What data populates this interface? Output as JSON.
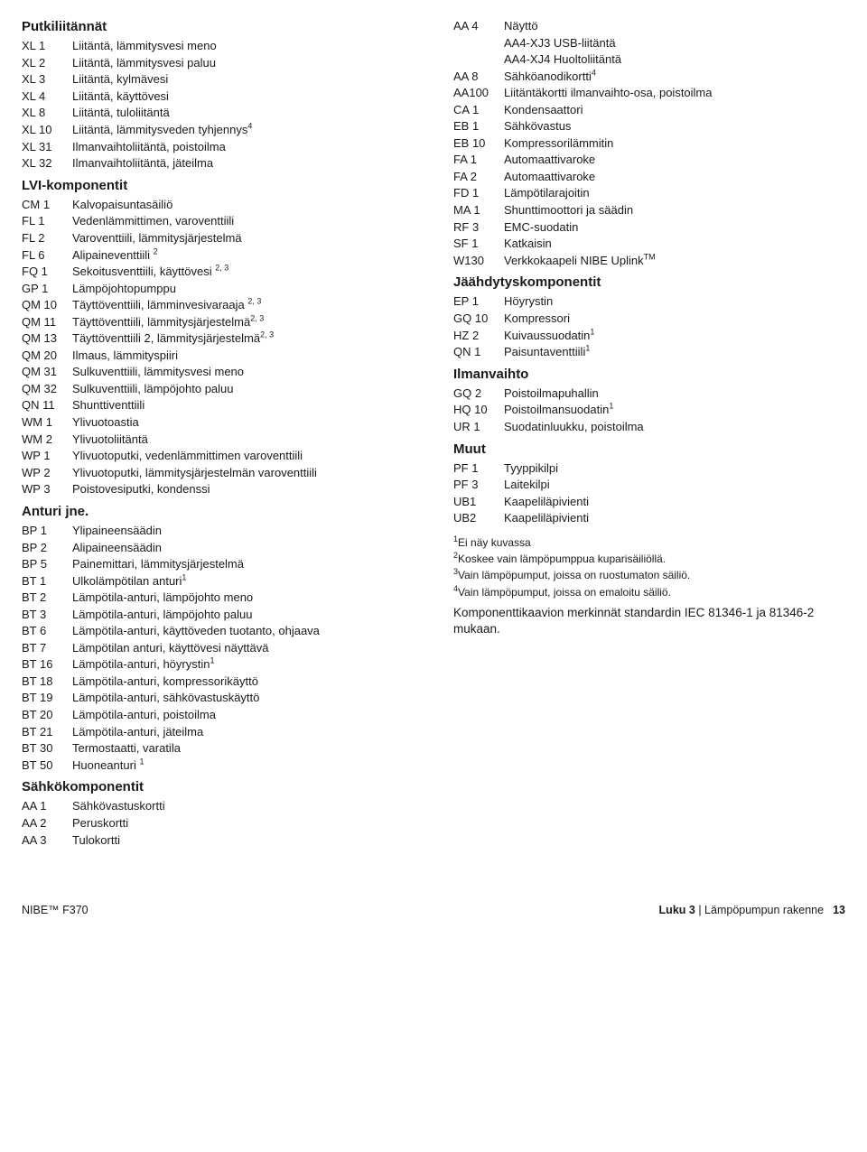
{
  "left": {
    "sections": [
      {
        "title": "Putkiliitännät",
        "rows": [
          {
            "code": "XL 1",
            "desc": "Liitäntä, lämmitysvesi meno"
          },
          {
            "code": "XL 2",
            "desc": "Liitäntä, lämmitysvesi paluu"
          },
          {
            "code": "XL 3",
            "desc": "Liitäntä, kylmävesi"
          },
          {
            "code": "XL 4",
            "desc": "Liitäntä, käyttövesi"
          },
          {
            "code": "XL 8",
            "desc": "Liitäntä, tuloliitäntä"
          },
          {
            "code": "XL 10",
            "desc": "Liitäntä, lämmitysveden tyhjennys",
            "sup": "4"
          },
          {
            "code": "XL 31",
            "desc": "Ilmanvaihtoliitäntä, poistoilma"
          },
          {
            "code": "XL 32",
            "desc": "Ilmanvaihtoliitäntä, jäteilma"
          }
        ]
      },
      {
        "title": "LVI-komponentit",
        "rows": [
          {
            "code": "CM 1",
            "desc": "Kalvopaisuntasäiliö"
          },
          {
            "code": "FL 1",
            "desc": "Vedenlämmittimen, varoventtiili"
          },
          {
            "code": "FL 2",
            "desc": "Varoventtiili, lämmitysjärjestelmä"
          },
          {
            "code": "FL 6",
            "desc": "Alipaineventtiili ",
            "sup": "2"
          },
          {
            "code": "FQ 1",
            "desc": "Sekoitusventtiili, käyttövesi ",
            "sup": "2, 3"
          },
          {
            "code": "GP 1",
            "desc": "Lämpöjohtopumppu"
          },
          {
            "code": "QM 10",
            "desc": "Täyttöventtiili, lämminvesivaraaja ",
            "sup": "2, 3"
          },
          {
            "code": "QM 11",
            "desc": "Täyttöventtiili, lämmitysjärjestelmä",
            "sup": "2, 3"
          },
          {
            "code": "QM 13",
            "desc": "Täyttöventtiili 2, lämmitysjärjestelmä",
            "sup": "2, 3"
          },
          {
            "code": "QM 20",
            "desc": "Ilmaus, lämmityspiiri"
          },
          {
            "code": "QM 31",
            "desc": "Sulkuventtiili, lämmitysvesi meno"
          },
          {
            "code": "QM 32",
            "desc": "Sulkuventtiili, lämpöjohto paluu"
          },
          {
            "code": "QN 11",
            "desc": "Shunttiventtiili"
          },
          {
            "code": "WM 1",
            "desc": "Ylivuotoastia"
          },
          {
            "code": "WM 2",
            "desc": "Ylivuotoliitäntä"
          },
          {
            "code": "WP 1",
            "desc": "Ylivuotoputki, vedenlämmittimen varoventtiili"
          },
          {
            "code": "WP 2",
            "desc": "Ylivuotoputki, lämmitysjärjestelmän varoventtiili"
          },
          {
            "code": "WP 3",
            "desc": "Poistovesiputki, kondenssi"
          }
        ]
      },
      {
        "title": "Anturi jne.",
        "rows": [
          {
            "code": "BP 1",
            "desc": "Ylipaineensäädin"
          },
          {
            "code": "BP 2",
            "desc": "Alipaineensäädin"
          },
          {
            "code": "BP 5",
            "desc": "Painemittari, lämmitysjärjestelmä"
          },
          {
            "code": "BT 1",
            "desc": "Ulkolämpötilan anturi",
            "sup": "1"
          },
          {
            "code": "BT 2",
            "desc": "Lämpötila-anturi, lämpöjohto meno"
          },
          {
            "code": "BT 3",
            "desc": "Lämpötila-anturi, lämpöjohto paluu"
          },
          {
            "code": "BT 6",
            "desc": "Lämpötila-anturi, käyttöveden tuotanto, ohjaava"
          },
          {
            "code": "BT 7",
            "desc": "Lämpötilan anturi, käyttövesi näyttävä"
          },
          {
            "code": "BT 16",
            "desc": "Lämpötila-anturi, höyrystin",
            "sup": "1"
          },
          {
            "code": "BT 18",
            "desc": "Lämpötila-anturi, kompressorikäyttö"
          },
          {
            "code": "BT 19",
            "desc": "Lämpötila-anturi, sähkövastuskäyttö"
          },
          {
            "code": "BT 20",
            "desc": "Lämpötila-anturi, poistoilma"
          },
          {
            "code": "BT 21",
            "desc": "Lämpötila-anturi, jäteilma"
          },
          {
            "code": "BT 30",
            "desc": "Termostaatti, varatila"
          },
          {
            "code": "BT 50",
            "desc": "Huoneanturi ",
            "sup": "1"
          }
        ]
      },
      {
        "title": "Sähkökomponentit",
        "rows": [
          {
            "code": "AA 1",
            "desc": "Sähkövastuskortti"
          },
          {
            "code": "AA 2",
            "desc": "Peruskortti"
          },
          {
            "code": "AA 3",
            "desc": "Tulokortti"
          }
        ]
      }
    ]
  },
  "right": {
    "topRows": [
      {
        "code": "AA 4",
        "desc": "Näyttö"
      },
      {
        "code": "",
        "desc": "AA4-XJ3 USB-liitäntä"
      },
      {
        "code": "",
        "desc": "AA4-XJ4 Huoltoliitäntä"
      },
      {
        "code": "AA 8",
        "desc": "Sähköanodikortti",
        "sup": "4"
      },
      {
        "code": "AA100",
        "desc": "Liitäntäkortti ilmanvaihto-osa, poistoilma"
      },
      {
        "code": "CA 1",
        "desc": "Kondensaattori"
      },
      {
        "code": "EB 1",
        "desc": "Sähkövastus"
      },
      {
        "code": "EB 10",
        "desc": "Kompressorilämmitin"
      },
      {
        "code": "FA 1",
        "desc": "Automaattivaroke"
      },
      {
        "code": "FA 2",
        "desc": "Automaattivaroke"
      },
      {
        "code": "FD 1",
        "desc": "Lämpötilarajoitin"
      },
      {
        "code": "MA 1",
        "desc": "Shunttimoottori ja säädin"
      },
      {
        "code": "RF 3",
        "desc": "EMC-suodatin"
      },
      {
        "code": "SF 1",
        "desc": "Katkaisin"
      },
      {
        "code": "W130",
        "desc": "Verkkokaapeli NIBE Uplink",
        "supTM": true
      }
    ],
    "sections": [
      {
        "title": "Jäähdytyskomponentit",
        "rows": [
          {
            "code": "EP 1",
            "desc": "Höyrystin"
          },
          {
            "code": "GQ 10",
            "desc": "Kompressori"
          },
          {
            "code": "HZ 2",
            "desc": "Kuivaussuodatin",
            "sup": "1"
          },
          {
            "code": "QN 1",
            "desc": "Paisuntaventtiili",
            "sup": "1"
          }
        ]
      },
      {
        "title": "Ilmanvaihto",
        "rows": [
          {
            "code": "GQ 2",
            "desc": "Poistoilmapuhallin"
          },
          {
            "code": "HQ 10",
            "desc": "Poistoilmansuodatin",
            "sup": "1"
          },
          {
            "code": "UR 1",
            "desc": "Suodatinluukku, poistoilma"
          }
        ]
      },
      {
        "title": "Muut",
        "rows": [
          {
            "code": "PF 1",
            "desc": "Tyyppikilpi"
          },
          {
            "code": "PF 3",
            "desc": "Laitekilpi"
          },
          {
            "code": "UB1",
            "desc": "Kaapeliläpivienti"
          },
          {
            "code": "UB2",
            "desc": "Kaapeliläpivienti"
          }
        ]
      }
    ],
    "footnotes": [
      {
        "n": "1",
        "text": "Ei näy kuvassa"
      },
      {
        "n": "2",
        "text": "Koskee vain lämpöpumppua kuparisäiliöllä."
      },
      {
        "n": "3",
        "text": "Vain lämpöpumput, joissa on ruostumaton säiliö."
      },
      {
        "n": "4",
        "text": "Vain lämpöpumput, joissa on emaloitu säiliö."
      }
    ],
    "stdNote": "Komponenttikaavion merkinnät standardin IEC 81346-1 ja 81346-2 mukaan."
  },
  "footer": {
    "left": "NIBE™ F370",
    "rightChapter": "Luku 3 ",
    "rightSep": "| ",
    "rightText": "Lämpöpumpun rakenne",
    "page": "13"
  }
}
